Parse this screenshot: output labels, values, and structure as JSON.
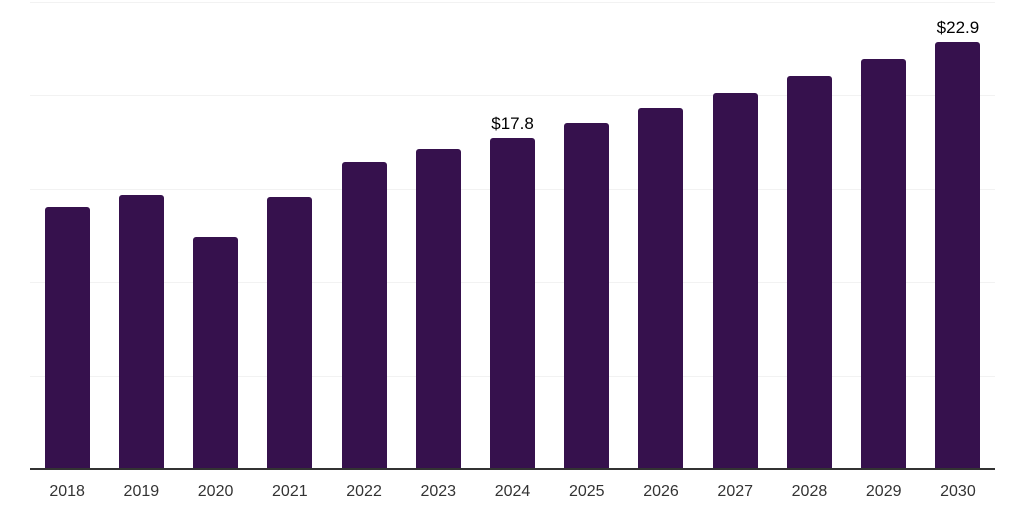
{
  "chart_data": {
    "type": "bar",
    "categories": [
      "2018",
      "2019",
      "2020",
      "2021",
      "2022",
      "2023",
      "2024",
      "2025",
      "2026",
      "2027",
      "2028",
      "2029",
      "2030"
    ],
    "values": [
      14.1,
      14.7,
      12.5,
      14.6,
      16.5,
      17.2,
      17.8,
      18.6,
      19.4,
      20.2,
      21.1,
      22.0,
      22.9
    ],
    "data_labels": {
      "2024": "$17.8",
      "2030": "$22.9"
    },
    "title": "",
    "xlabel": "",
    "ylabel": "",
    "ylim": [
      0,
      25
    ],
    "gridlines": [
      5,
      10,
      15,
      20,
      25
    ],
    "grid": true,
    "legend_position": "none",
    "bar_color": "#36114d",
    "gridline_color": "#f2f2f2",
    "axis_line_color": "#333333",
    "value_label_color": "#000000",
    "tick_label_color": "#333333"
  }
}
